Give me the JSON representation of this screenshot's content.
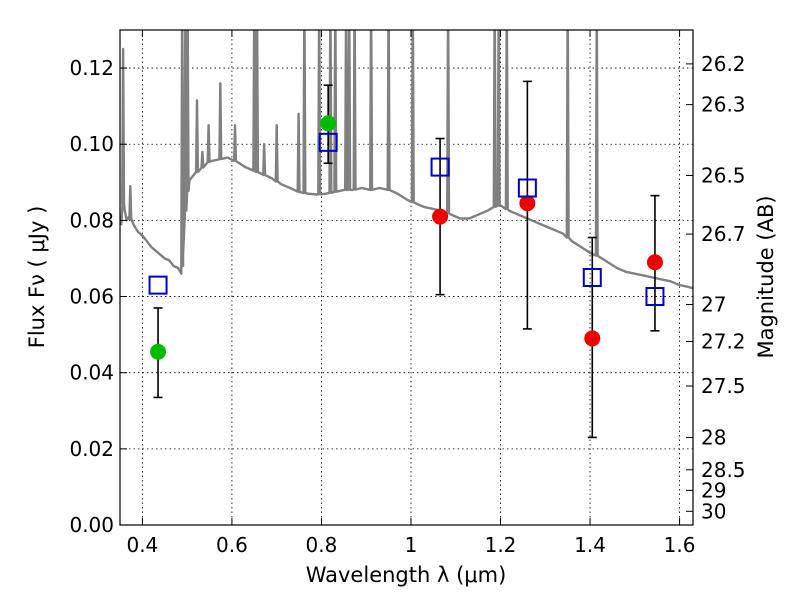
{
  "chart_data": {
    "type": "scatter",
    "xlabel": "Wavelength  λ (μm)",
    "ylabel": "Flux  Fν  ( μJy )",
    "y2label": "Magnitude (AB)",
    "xlim": [
      0.35,
      1.63
    ],
    "ylim": [
      0.0,
      0.13
    ],
    "grid": true,
    "x_ticks": [
      0.4,
      0.6,
      0.8,
      1.0,
      1.2,
      1.4,
      1.6
    ],
    "x_tick_labels": [
      "0.4",
      "0.6",
      "0.8",
      "1",
      "1.2",
      "1.4",
      "1.6"
    ],
    "y_ticks": [
      0.0,
      0.02,
      0.04,
      0.06,
      0.08,
      0.1,
      0.12
    ],
    "y_tick_labels": [
      "0.00",
      "0.02",
      "0.04",
      "0.06",
      "0.08",
      "0.10",
      "0.12"
    ],
    "mag_ticks": [
      {
        "label": "26.2",
        "flux": 0.1211
      },
      {
        "label": "26.3",
        "flux": 0.1104
      },
      {
        "label": "26.5",
        "flux": 0.0918
      },
      {
        "label": "26.7",
        "flux": 0.0764
      },
      {
        "label": "27",
        "flux": 0.0579
      },
      {
        "label": "27.2",
        "flux": 0.0482
      },
      {
        "label": "27.5",
        "flux": 0.0365
      },
      {
        "label": "28",
        "flux": 0.023
      },
      {
        "label": "28.5",
        "flux": 0.0145
      },
      {
        "label": "29",
        "flux": 0.0091
      },
      {
        "label": "30",
        "flux": 0.0036
      }
    ],
    "series": [
      {
        "color": "#00bb00",
        "marker": "circle",
        "points": [
          {
            "x": 0.435,
            "y": 0.0455
          },
          {
            "x": 0.815,
            "y": 0.1055
          }
        ]
      },
      {
        "color": "#ee0000",
        "marker": "circle",
        "points": [
          {
            "x": 1.065,
            "y": 0.081
          },
          {
            "x": 1.26,
            "y": 0.0845
          },
          {
            "x": 1.405,
            "y": 0.049
          },
          {
            "x": 1.545,
            "y": 0.069
          }
        ]
      },
      {
        "color": "#0000cc",
        "marker": "open-square",
        "points": [
          {
            "x": 0.435,
            "y": 0.063
          },
          {
            "x": 0.815,
            "y": 0.1005
          },
          {
            "x": 1.065,
            "y": 0.094
          },
          {
            "x": 1.26,
            "y": 0.0885
          },
          {
            "x": 1.405,
            "y": 0.065
          },
          {
            "x": 1.545,
            "y": 0.06
          }
        ]
      }
    ],
    "error_bars": [
      {
        "x": 0.435,
        "low": 0.0335,
        "high": 0.057
      },
      {
        "x": 0.815,
        "low": 0.095,
        "high": 0.1155
      },
      {
        "x": 1.065,
        "low": 0.0605,
        "high": 0.1015
      },
      {
        "x": 1.26,
        "low": 0.0515,
        "high": 0.1165
      },
      {
        "x": 1.405,
        "low": 0.023,
        "high": 0.0755
      },
      {
        "x": 1.545,
        "low": 0.051,
        "high": 0.0865
      }
    ],
    "model_spectrum": {
      "color": "#808080",
      "points": [
        [
          0.35,
          0.081
        ],
        [
          0.353,
          0.079
        ],
        [
          0.356,
          0.085
        ],
        [
          0.36,
          0.083
        ],
        [
          0.365,
          0.08
        ],
        [
          0.37,
          0.081
        ],
        [
          0.38,
          0.079
        ],
        [
          0.39,
          0.077
        ],
        [
          0.4,
          0.076
        ],
        [
          0.41,
          0.0745
        ],
        [
          0.42,
          0.073
        ],
        [
          0.43,
          0.072
        ],
        [
          0.44,
          0.071
        ],
        [
          0.45,
          0.07
        ],
        [
          0.46,
          0.0695
        ],
        [
          0.47,
          0.068
        ],
        [
          0.48,
          0.0675
        ],
        [
          0.487,
          0.066
        ],
        [
          0.49,
          0.069
        ],
        [
          0.495,
          0.0815
        ],
        [
          0.5,
          0.087
        ],
        [
          0.505,
          0.0905
        ],
        [
          0.515,
          0.092
        ],
        [
          0.53,
          0.0935
        ],
        [
          0.55,
          0.0955
        ],
        [
          0.57,
          0.096
        ],
        [
          0.59,
          0.0965
        ],
        [
          0.61,
          0.0955
        ],
        [
          0.63,
          0.094
        ],
        [
          0.65,
          0.093
        ],
        [
          0.67,
          0.092
        ],
        [
          0.69,
          0.091
        ],
        [
          0.71,
          0.0895
        ],
        [
          0.73,
          0.0885
        ],
        [
          0.75,
          0.0875
        ],
        [
          0.77,
          0.087
        ],
        [
          0.79,
          0.0868
        ],
        [
          0.81,
          0.087
        ],
        [
          0.83,
          0.0875
        ],
        [
          0.85,
          0.088
        ],
        [
          0.87,
          0.088
        ],
        [
          0.89,
          0.0885
        ],
        [
          0.91,
          0.088
        ],
        [
          0.93,
          0.0885
        ],
        [
          0.95,
          0.088
        ],
        [
          0.97,
          0.087
        ],
        [
          0.99,
          0.0855
        ],
        [
          1.01,
          0.0845
        ],
        [
          1.03,
          0.0835
        ],
        [
          1.05,
          0.083
        ],
        [
          1.07,
          0.0825
        ],
        [
          1.09,
          0.0815
        ],
        [
          1.11,
          0.0805
        ],
        [
          1.13,
          0.0805
        ],
        [
          1.15,
          0.0815
        ],
        [
          1.17,
          0.0825
        ],
        [
          1.185,
          0.0835
        ],
        [
          1.2,
          0.084
        ],
        [
          1.22,
          0.0825
        ],
        [
          1.24,
          0.0815
        ],
        [
          1.26,
          0.0805
        ],
        [
          1.28,
          0.0795
        ],
        [
          1.3,
          0.0785
        ],
        [
          1.32,
          0.0775
        ],
        [
          1.34,
          0.0765
        ],
        [
          1.36,
          0.0745
        ],
        [
          1.38,
          0.073
        ],
        [
          1.4,
          0.0715
        ],
        [
          1.42,
          0.0705
        ],
        [
          1.44,
          0.069
        ],
        [
          1.46,
          0.0675
        ],
        [
          1.48,
          0.0665
        ],
        [
          1.5,
          0.066
        ],
        [
          1.52,
          0.0655
        ],
        [
          1.54,
          0.065
        ],
        [
          1.56,
          0.0645
        ],
        [
          1.58,
          0.064
        ],
        [
          1.6,
          0.063
        ],
        [
          1.62,
          0.0625
        ],
        [
          1.63,
          0.0622
        ]
      ],
      "spikes": [
        [
          0.357,
          0.125
        ],
        [
          0.373,
          0.089
        ],
        [
          0.489,
          0.14
        ],
        [
          0.496,
          0.14
        ],
        [
          0.501,
          0.14
        ],
        [
          0.522,
          0.1115
        ],
        [
          0.534,
          0.098
        ],
        [
          0.548,
          0.105
        ],
        [
          0.574,
          0.116
        ],
        [
          0.607,
          0.105
        ],
        [
          0.65,
          0.14
        ],
        [
          0.656,
          0.14
        ],
        [
          0.672,
          0.1
        ],
        [
          0.7,
          0.105
        ],
        [
          0.749,
          0.108
        ],
        [
          0.762,
          0.14
        ],
        [
          0.795,
          0.14
        ],
        [
          0.82,
          0.14
        ],
        [
          0.831,
          0.14
        ],
        [
          0.855,
          0.14
        ],
        [
          0.862,
          0.14
        ],
        [
          0.874,
          0.14
        ],
        [
          0.911,
          0.14
        ],
        [
          0.95,
          0.14
        ],
        [
          1.004,
          0.14
        ],
        [
          1.083,
          0.14
        ],
        [
          1.187,
          0.14
        ],
        [
          1.196,
          0.14
        ],
        [
          1.214,
          0.14
        ],
        [
          1.35,
          0.14
        ],
        [
          1.415,
          0.14
        ]
      ]
    }
  }
}
